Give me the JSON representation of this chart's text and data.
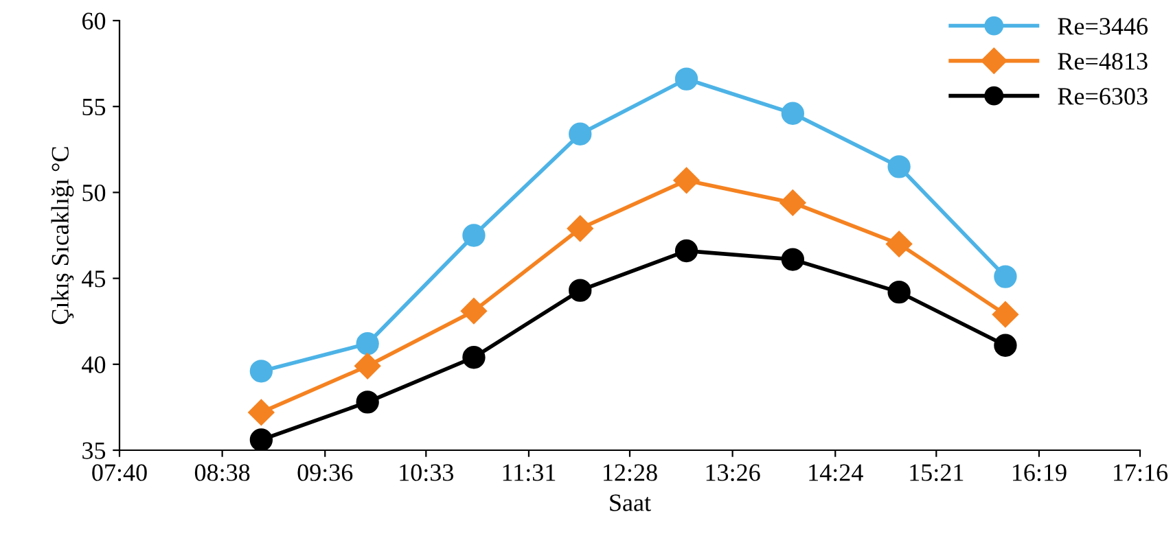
{
  "chart_data": {
    "type": "line",
    "xlabel": "Saat",
    "ylabel": "Çıkış Sıcaklığı °C",
    "x": [
      9,
      10,
      11,
      12,
      13,
      14,
      15,
      16
    ],
    "series": [
      {
        "name": "Re=3446",
        "color": "#4db3e6",
        "marker": "circle",
        "values": [
          39.6,
          41.2,
          47.5,
          53.4,
          56.6,
          54.6,
          51.5,
          45.1
        ]
      },
      {
        "name": "Re=4813",
        "color": "#f58220",
        "marker": "diamond",
        "values": [
          37.2,
          39.9,
          43.1,
          47.9,
          50.7,
          49.4,
          47.0,
          42.9
        ]
      },
      {
        "name": "Re=6303",
        "color": "#000000",
        "marker": "circle",
        "values": [
          35.6,
          37.8,
          40.4,
          44.3,
          46.6,
          46.1,
          44.2,
          41.1
        ]
      }
    ],
    "xlim": [
      7.6667,
      17.2667
    ],
    "xticks": [
      {
        "value": 7.6667,
        "label": "07:40"
      },
      {
        "value": 8.6333,
        "label": "08:38"
      },
      {
        "value": 9.6,
        "label": "09:36"
      },
      {
        "value": 10.55,
        "label": "10:33"
      },
      {
        "value": 11.5167,
        "label": "11:31"
      },
      {
        "value": 12.4667,
        "label": "12:28"
      },
      {
        "value": 13.4333,
        "label": "13:26"
      },
      {
        "value": 14.4,
        "label": "14:24"
      },
      {
        "value": 15.35,
        "label": "15:21"
      },
      {
        "value": 16.3167,
        "label": "16:19"
      },
      {
        "value": 17.2667,
        "label": "17:16"
      }
    ],
    "ylim": [
      35,
      60
    ],
    "yticks": [
      35,
      40,
      45,
      50,
      55,
      60
    ],
    "grid": false,
    "legend": "top right",
    "line_style": "solid"
  }
}
